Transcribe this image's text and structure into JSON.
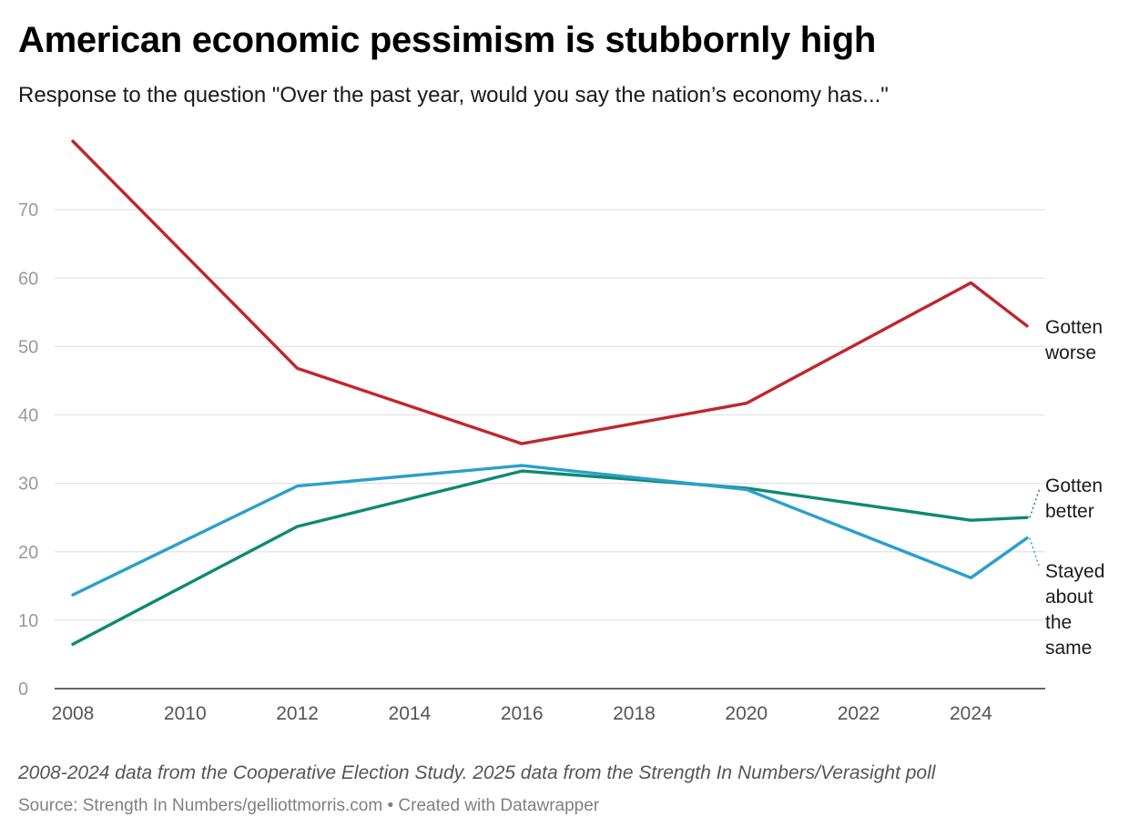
{
  "header": {
    "title": "American economic pessimism is stubbornly high",
    "subtitle": "Response to the question \"Over the past year, would you say the nation’s economy has...\""
  },
  "footer": {
    "note": "2008-2024 data from the Cooperative Election Study. 2025 data from the Strength In Numbers/Verasight poll",
    "source": "Source: Strength In Numbers/gelliottmorris.com • Created with Datawrapper"
  },
  "chart_data": {
    "type": "line",
    "title": "American economic pessimism is stubbornly high",
    "subtitle": "Response to the question \"Over the past year, would you say the nation’s economy has...\"",
    "xlabel": "",
    "ylabel": "",
    "x": [
      2008,
      2012,
      2016,
      2020,
      2024,
      2025
    ],
    "xlim": [
      2008,
      2025
    ],
    "ylim": [
      0,
      80
    ],
    "x_ticks": [
      2008,
      2010,
      2012,
      2014,
      2016,
      2018,
      2020,
      2022,
      2024
    ],
    "y_ticks": [
      0,
      10,
      20,
      30,
      40,
      50,
      60,
      70
    ],
    "grid": true,
    "series": [
      {
        "name": "Gotten worse",
        "label_lines": [
          "Gotten",
          "worse"
        ],
        "color": "#c0262b",
        "values": [
          80,
          46.8,
          35.8,
          41.7,
          59.3,
          53
        ]
      },
      {
        "name": "Gotten better",
        "label_lines": [
          "Gotten",
          "better"
        ],
        "color": "#0d8a73",
        "values": [
          6.5,
          23.7,
          31.8,
          29.3,
          24.6,
          25
        ]
      },
      {
        "name": "Stayed about the same",
        "label_lines": [
          "Stayed",
          "about",
          "the",
          "same"
        ],
        "color": "#2a9fce",
        "values": [
          13.7,
          29.6,
          32.6,
          29.1,
          16.2,
          22
        ]
      }
    ]
  }
}
